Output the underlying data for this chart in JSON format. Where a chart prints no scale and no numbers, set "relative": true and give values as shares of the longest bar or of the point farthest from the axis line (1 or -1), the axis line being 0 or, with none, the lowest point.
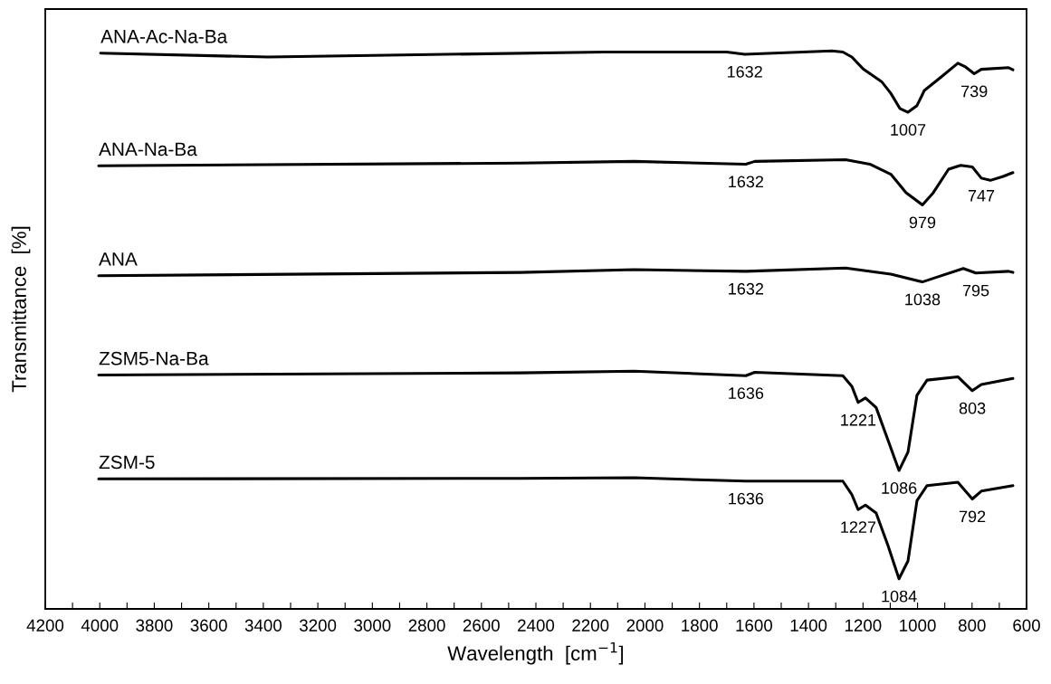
{
  "chart_data": {
    "type": "line",
    "relative": true,
    "xlabel": "Wavelength  [cm$^{−1}$]",
    "ylabel": "Transmittance  [%]",
    "xlim": [
      4200,
      600
    ],
    "xticks": [
      4200,
      {
        "value": 4100,
        "label": null
      },
      4000,
      {
        "value": 3900,
        "label": null
      },
      3800,
      {
        "value": 3700,
        "label": null
      },
      3600,
      {
        "value": 3500,
        "label": null
      },
      3400,
      {
        "value": 3300,
        "label": null
      },
      3200,
      {
        "value": 3100,
        "label": null
      },
      3000,
      {
        "value": 2900,
        "label": null
      },
      2800,
      {
        "value": 2700,
        "label": null
      },
      2600,
      {
        "value": 2500,
        "label": null
      },
      2400,
      {
        "value": 2300,
        "label": null
      },
      2200,
      {
        "value": 2100,
        "label": null
      },
      2000,
      {
        "value": 1900,
        "label": null
      },
      1800,
      {
        "value": 1700,
        "label": null
      },
      1600,
      {
        "value": 1500,
        "label": null
      },
      1400,
      {
        "value": 1300,
        "label": null
      },
      1200,
      {
        "value": 1100,
        "label": null
      },
      1000,
      {
        "value": 900,
        "label": null
      },
      800,
      {
        "value": 700,
        "label": null
      },
      600
    ],
    "grid": false,
    "legend": false,
    "line_style": "solid",
    "marker": "none",
    "series": [
      {
        "name": "ANA-Ac-Na-Ba",
        "color": "#000000",
        "x": [
          3997,
          3382,
          2149,
          1700,
          1634,
          1314,
          1274,
          1241,
          1198,
          1132,
          1098,
          1065,
          1035,
          1002,
          975,
          919,
          852,
          826,
          792,
          766,
          666,
          650
        ],
        "values": [
          0.996,
          0.989,
          0.998,
          0.998,
          0.994,
          1.0,
          0.998,
          0.989,
          0.967,
          0.945,
          0.924,
          0.897,
          0.89,
          0.902,
          0.929,
          0.951,
          0.978,
          0.972,
          0.959,
          0.967,
          0.97,
          0.966
        ]
      },
      {
        "name": "ANA-Na-Ba",
        "color": "#000000",
        "x": [
          4004,
          2458,
          2039,
          1630,
          1597,
          1264,
          1175,
          1098,
          1042,
          982,
          942,
          886,
          842,
          799,
          766,
          733,
          686,
          650
        ],
        "values": [
          0.794,
          0.799,
          0.802,
          0.797,
          0.802,
          0.805,
          0.797,
          0.779,
          0.746,
          0.724,
          0.746,
          0.788,
          0.795,
          0.792,
          0.772,
          0.768,
          0.775,
          0.782
        ]
      },
      {
        "name": "ANA",
        "color": "#000000",
        "x": [
          4004,
          2458,
          2039,
          1630,
          1264,
          1098,
          982,
          932,
          832,
          786,
          666,
          650
        ],
        "values": [
          0.597,
          0.603,
          0.608,
          0.605,
          0.611,
          0.6,
          0.586,
          0.594,
          0.61,
          0.602,
          0.605,
          0.603
        ]
      },
      {
        "name": "ZSM5-Na-Ba",
        "color": "#000000",
        "x": [
          4004,
          2458,
          2039,
          1630,
          1597,
          1274,
          1241,
          1218,
          1191,
          1152,
          1108,
          1068,
          1035,
          1002,
          965,
          852,
          799,
          766,
          650
        ],
        "values": [
          0.419,
          0.423,
          0.426,
          0.418,
          0.424,
          0.418,
          0.399,
          0.37,
          0.378,
          0.361,
          0.302,
          0.248,
          0.281,
          0.383,
          0.41,
          0.416,
          0.391,
          0.402,
          0.413
        ]
      },
      {
        "name": "ZSM-5",
        "color": "#000000",
        "x": [
          4004,
          2458,
          2039,
          1630,
          1274,
          1241,
          1218,
          1191,
          1152,
          1108,
          1068,
          1035,
          1002,
          965,
          852,
          799,
          766,
          650
        ],
        "values": [
          0.233,
          0.234,
          0.235,
          0.229,
          0.229,
          0.205,
          0.178,
          0.186,
          0.172,
          0.113,
          0.054,
          0.086,
          0.194,
          0.221,
          0.227,
          0.197,
          0.211,
          0.221
        ]
      }
    ],
    "annotations": [
      {
        "text": "1632",
        "x": 1634,
        "y": 0.994
      },
      {
        "text": "1007",
        "x": 1035,
        "y": 0.89
      },
      {
        "text": "739",
        "x": 792,
        "y": 0.959
      },
      {
        "text": "1632",
        "x": 1630,
        "y": 0.797
      },
      {
        "text": "979",
        "x": 982,
        "y": 0.724
      },
      {
        "text": "747",
        "x": 766,
        "y": 0.772
      },
      {
        "text": "1632",
        "x": 1630,
        "y": 0.605
      },
      {
        "text": "1038",
        "x": 982,
        "y": 0.586
      },
      {
        "text": "795",
        "x": 786,
        "y": 0.602
      },
      {
        "text": "1636",
        "x": 1630,
        "y": 0.418
      },
      {
        "text": "1221",
        "x": 1218,
        "y": 0.37
      },
      {
        "text": "1086",
        "x": 1068,
        "y": 0.248
      },
      {
        "text": "803",
        "x": 799,
        "y": 0.391
      },
      {
        "text": "1636",
        "x": 1630,
        "y": 0.229
      },
      {
        "text": "1227",
        "x": 1218,
        "y": 0.178
      },
      {
        "text": "1084",
        "x": 1068,
        "y": 0.054
      },
      {
        "text": "792",
        "x": 799,
        "y": 0.197
      }
    ]
  }
}
